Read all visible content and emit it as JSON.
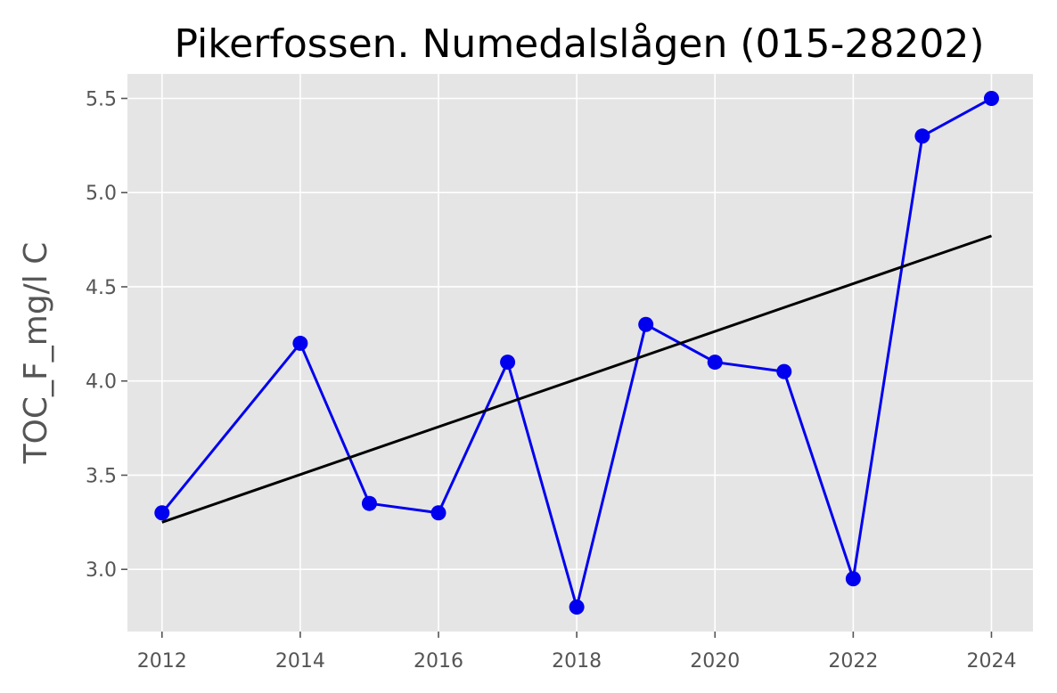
{
  "chart_data": {
    "type": "line",
    "title": "Pikerfossen. Numedalslågen (015-28202)",
    "xlabel": "",
    "ylabel": "TOC_F_mg/l C",
    "xlim": [
      2011.5,
      2024.6
    ],
    "ylim": [
      2.67,
      5.63
    ],
    "x_ticks": [
      2012,
      2014,
      2016,
      2018,
      2020,
      2022,
      2024
    ],
    "y_ticks": [
      3.0,
      3.5,
      4.0,
      4.5,
      5.0,
      5.5
    ],
    "grid": true,
    "background": "#e5e5e5",
    "series": [
      {
        "kind": "line+markers",
        "color": "#0000ee",
        "x": [
          2012,
          2014,
          2015,
          2016,
          2017,
          2018,
          2019,
          2020,
          2021,
          2022,
          2023,
          2024
        ],
        "y": [
          3.3,
          4.2,
          3.35,
          3.3,
          4.1,
          2.8,
          4.3,
          4.1,
          4.05,
          2.95,
          5.3,
          5.5
        ]
      },
      {
        "kind": "trend-line",
        "color": "#000000",
        "x": [
          2012,
          2024
        ],
        "y": [
          3.25,
          4.77
        ]
      }
    ]
  }
}
